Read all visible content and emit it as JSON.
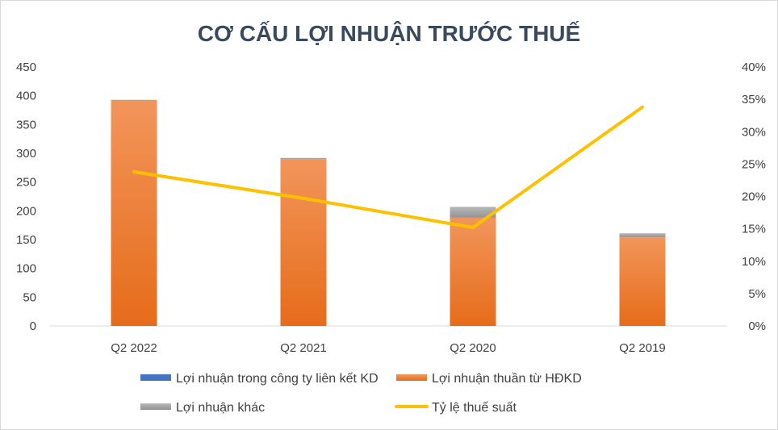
{
  "chart_data": {
    "type": "bar",
    "title": "CƠ CẤU LỢI NHUẬN TRƯỚC THUẾ",
    "categories": [
      "Q2 2022",
      "Q2 2021",
      "Q2 2020",
      "Q2 2019"
    ],
    "series": [
      {
        "name": "Lợi nhuận trong công ty liên kết KD",
        "kind": "bar",
        "axis": "left",
        "color": "#4472c4",
        "values": [
          0,
          1,
          0,
          0
        ]
      },
      {
        "name": "Lợi nhuận thuần từ HĐKD",
        "kind": "bar",
        "axis": "left",
        "color": "#ed7d31",
        "values": [
          392,
          289,
          188,
          154
        ]
      },
      {
        "name": "Lợi nhuận khác",
        "kind": "bar",
        "axis": "left",
        "color": "#a5a5a5",
        "values": [
          1,
          2,
          19,
          7
        ]
      },
      {
        "name": "Tỷ lệ thuế suất",
        "kind": "line",
        "axis": "right",
        "color": "#ffc000",
        "values": [
          0.238,
          0.197,
          0.152,
          0.338
        ]
      }
    ],
    "ylim": [
      0,
      450
    ],
    "yticks": [
      0,
      50,
      100,
      150,
      200,
      250,
      300,
      350,
      400,
      450
    ],
    "y2lim": [
      0,
      0.4
    ],
    "y2ticks": [
      "0%",
      "5%",
      "10%",
      "15%",
      "20%",
      "25%",
      "30%",
      "35%",
      "40%"
    ],
    "grid": false,
    "legend_position": "bottom"
  }
}
